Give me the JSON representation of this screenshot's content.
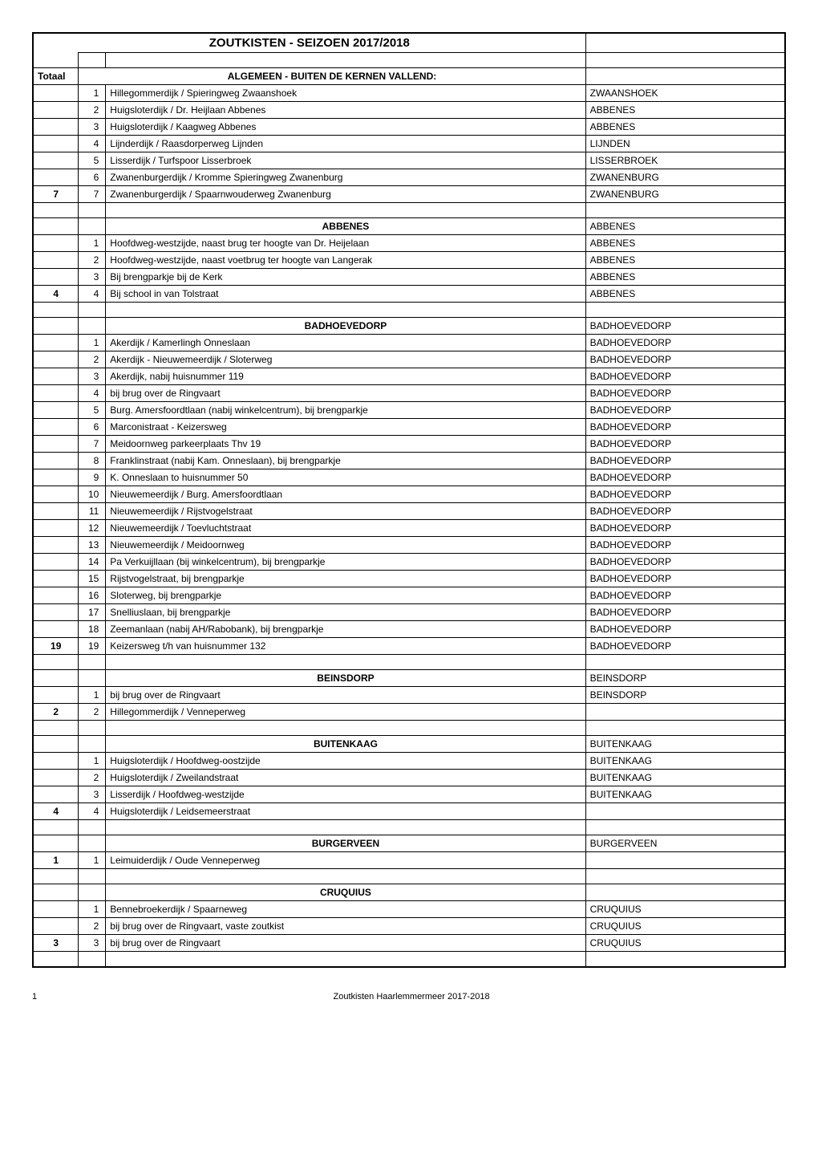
{
  "title": "ZOUTKISTEN  -  SEIZOEN 2017/2018",
  "totaal_label": "Totaal",
  "sections": [
    {
      "header": "ALGEMEEN - BUITEN DE KERNEN VALLEND:",
      "header_loc": "",
      "total": "7",
      "rows": [
        {
          "n": "1",
          "desc": "Hillegommerdijk / Spieringweg Zwaanshoek",
          "loc": "ZWAANSHOEK"
        },
        {
          "n": "2",
          "desc": "Huigsloterdijk / Dr. Heijlaan Abbenes",
          "loc": "ABBENES"
        },
        {
          "n": "3",
          "desc": "Huigsloterdijk / Kaagweg Abbenes",
          "loc": "ABBENES"
        },
        {
          "n": "4",
          "desc": "Lijnderdijk / Raasdorperweg Lijnden",
          "loc": "LIJNDEN"
        },
        {
          "n": "5",
          "desc": "Lisserdijk / Turfspoor Lisserbroek",
          "loc": "LISSERBROEK"
        },
        {
          "n": "6",
          "desc": "Zwanenburgerdijk / Kromme Spieringweg Zwanenburg",
          "loc": "ZWANENBURG"
        },
        {
          "n": "7",
          "desc": "Zwanenburgerdijk / Spaarnwouderweg Zwanenburg",
          "loc": "ZWANENBURG"
        }
      ]
    },
    {
      "header": "ABBENES",
      "header_loc": "ABBENES",
      "total": "4",
      "rows": [
        {
          "n": "1",
          "desc": "Hoofdweg-westzijde, naast brug ter hoogte van Dr. Heijelaan",
          "loc": "ABBENES"
        },
        {
          "n": "2",
          "desc": "Hoofdweg-westzijde, naast voetbrug ter hoogte van Langerak",
          "loc": "ABBENES"
        },
        {
          "n": "3",
          "desc": "Bij brengparkje bij de Kerk",
          "loc": "ABBENES"
        },
        {
          "n": "4",
          "desc": "Bij school in van Tolstraat",
          "loc": "ABBENES"
        }
      ]
    },
    {
      "header": "BADHOEVEDORP",
      "header_loc": "BADHOEVEDORP",
      "total": "19",
      "rows": [
        {
          "n": "1",
          "desc": "Akerdijk / Kamerlingh Onneslaan",
          "loc": "BADHOEVEDORP"
        },
        {
          "n": "2",
          "desc": "Akerdijk - Nieuwemeerdijk / Sloterweg",
          "loc": "BADHOEVEDORP"
        },
        {
          "n": "3",
          "desc": "Akerdijk, nabij huisnummer 119",
          "loc": "BADHOEVEDORP"
        },
        {
          "n": "4",
          "desc": "bij brug over de Ringvaart",
          "loc": "BADHOEVEDORP"
        },
        {
          "n": "5",
          "desc": "Burg. Amersfoordtlaan (nabij winkelcentrum), bij brengparkje",
          "loc": "BADHOEVEDORP"
        },
        {
          "n": "6",
          "desc": "Marconistraat - Keizersweg",
          "loc": "BADHOEVEDORP"
        },
        {
          "n": "7",
          "desc": "Meidoornweg parkeerplaats Thv 19",
          "loc": "BADHOEVEDORP"
        },
        {
          "n": "8",
          "desc": "Franklinstraat (nabij Kam. Onneslaan), bij brengparkje",
          "loc": "BADHOEVEDORP"
        },
        {
          "n": "9",
          "desc": "K. Onneslaan to huisnummer 50",
          "loc": "BADHOEVEDORP"
        },
        {
          "n": "10",
          "desc": "Nieuwemeerdijk / Burg. Amersfoordtlaan",
          "loc": "BADHOEVEDORP"
        },
        {
          "n": "11",
          "desc": "Nieuwemeerdijk / Rijstvogelstraat",
          "loc": "BADHOEVEDORP"
        },
        {
          "n": "12",
          "desc": "Nieuwemeerdijk / Toevluchtstraat",
          "loc": "BADHOEVEDORP"
        },
        {
          "n": "13",
          "desc": "Nieuwemeerdijk / Meidoornweg",
          "loc": "BADHOEVEDORP"
        },
        {
          "n": "14",
          "desc": "Pa Verkuijllaan (bij winkelcentrum), bij brengparkje",
          "loc": "BADHOEVEDORP"
        },
        {
          "n": "15",
          "desc": "Rijstvogelstraat, bij brengparkje",
          "loc": "BADHOEVEDORP"
        },
        {
          "n": "16",
          "desc": "Sloterweg, bij brengparkje",
          "loc": "BADHOEVEDORP"
        },
        {
          "n": "17",
          "desc": "Snelliuslaan, bij brengparkje",
          "loc": "BADHOEVEDORP"
        },
        {
          "n": "18",
          "desc": "Zeemanlaan (nabij AH/Rabobank), bij brengparkje",
          "loc": "BADHOEVEDORP"
        },
        {
          "n": "19",
          "desc": "Keizersweg t/h van huisnummer 132",
          "loc": "BADHOEVEDORP"
        }
      ]
    },
    {
      "header": "BEINSDORP",
      "header_loc": "BEINSDORP",
      "total": "2",
      "rows": [
        {
          "n": "1",
          "desc": "bij brug over de Ringvaart",
          "loc": "BEINSDORP"
        },
        {
          "n": "2",
          "desc": "Hillegommerdijk / Venneperweg",
          "loc": ""
        }
      ]
    },
    {
      "header": "BUITENKAAG",
      "header_loc": "BUITENKAAG",
      "total": "4",
      "rows": [
        {
          "n": "1",
          "desc": "Huigsloterdijk / Hoofdweg-oostzijde",
          "loc": "BUITENKAAG"
        },
        {
          "n": "2",
          "desc": "Huigsloterdijk / Zweilandstraat",
          "loc": "BUITENKAAG"
        },
        {
          "n": "3",
          "desc": "Lisserdijk / Hoofdweg-westzijde",
          "loc": "BUITENKAAG"
        },
        {
          "n": "4",
          "desc": "Huigsloterdijk / Leidsemeerstraat",
          "loc": ""
        }
      ]
    },
    {
      "header": "BURGERVEEN",
      "header_loc": "BURGERVEEN",
      "total": "1",
      "rows": [
        {
          "n": "1",
          "desc": "Leimuiderdijk / Oude Venneperweg",
          "loc": ""
        }
      ]
    },
    {
      "header": "CRUQUIUS",
      "header_loc": "",
      "total": "3",
      "rows": [
        {
          "n": "1",
          "desc": "Bennebroekerdijk / Spaarneweg",
          "loc": "CRUQUIUS"
        },
        {
          "n": "2",
          "desc": "bij brug over de Ringvaart, vaste zoutkist",
          "loc": "CRUQUIUS"
        },
        {
          "n": "3",
          "desc": "bij brug over de Ringvaart",
          "loc": "CRUQUIUS"
        }
      ]
    }
  ],
  "footer": {
    "page": "1",
    "text": "Zoutkisten Haarlemmermeer 2017-2018"
  }
}
